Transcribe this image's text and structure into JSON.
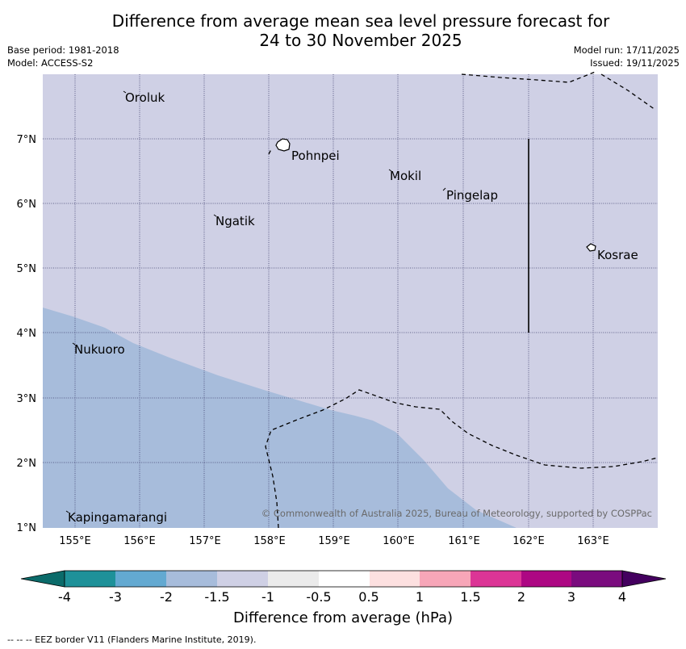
{
  "header": {
    "title_line1": "Difference from average mean sea level pressure forecast for",
    "title_line2": "24 to 30 November 2025",
    "base_period": "Base period: 1981-2018",
    "model": "Model: ACCESS-S2",
    "model_run": "Model run: 17/11/2025",
    "issued": "Issued: 19/11/2025"
  },
  "map": {
    "lon_labels": [
      "155°E",
      "156°E",
      "157°E",
      "158°E",
      "159°E",
      "160°E",
      "161°E",
      "162°E",
      "163°E"
    ],
    "lat_labels": [
      "7°N",
      "6°N",
      "5°N",
      "4°N",
      "3°N",
      "2°N",
      "1°N"
    ],
    "places": [
      "Oroluk",
      "Pohnpei",
      "Mokil",
      "Pingelap",
      "Ngatik",
      "Kosrae",
      "Nukuoro",
      "Kapingamarangi"
    ],
    "copyright": "© Commonwealth of Australia 2025, Bureau of Meteorology, supported by COSPPac",
    "fill_colors": {
      "background": "#cfd0e5",
      "minus_1_5_to_minus_2": "#a7bcdb"
    }
  },
  "colorbar": {
    "labels": [
      "-4",
      "-3",
      "-2",
      "-1.5",
      "-1",
      "-0.5",
      "0.5",
      "1",
      "1.5",
      "2",
      "3",
      "4"
    ],
    "colors": [
      "#0b6b6a",
      "#1e9199",
      "#63a9d1",
      "#a7bcdb",
      "#cfd0e5",
      "#ebebeb",
      "#ffffff",
      "#fde0e0",
      "#f7a6b8",
      "#dc3596",
      "#ad0783",
      "#7a0b7e",
      "#44005f"
    ],
    "title": "Difference from average (hPa)"
  },
  "footer": {
    "eez": "--  --  -- EEZ border V11 (Flanders Marine Institute, 2019)."
  }
}
